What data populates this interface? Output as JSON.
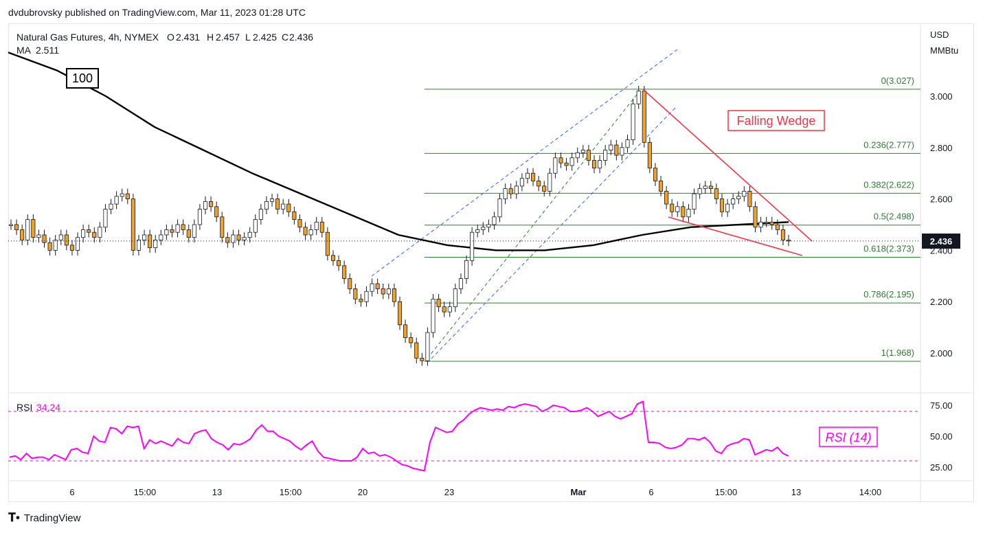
{
  "header": {
    "published": "dvdubrovsky published on TradingView.com, Mar 11, 2023 01:28 UTC"
  },
  "legend": {
    "symbol": "Natural Gas Futures, 4h, NYMEX",
    "open_label": "O",
    "open": "2.431",
    "high_label": "H",
    "high": "2.457",
    "low_label": "L",
    "low": "2.425",
    "close_label": "C",
    "close": "2.436",
    "ma_label": "MA",
    "ma_value": "2.511"
  },
  "price_axis": {
    "unit_line1": "USD",
    "unit_line2": "MMBtu",
    "ticks": [
      "3.000",
      "2.800",
      "2.600",
      "2.400",
      "2.200",
      "2.000"
    ],
    "last_price": "2.436"
  },
  "time_axis": {
    "ticks": [
      "6",
      "15:00",
      "13",
      "15:00",
      "20",
      "23",
      "Mar",
      "6",
      "15:00",
      "13",
      "14:00"
    ]
  },
  "ma_badge": "100",
  "annotations": {
    "pattern": "Falling Wedge",
    "rsi_title": "RSI (14)"
  },
  "fib_levels": [
    {
      "label": "0(3.027)",
      "value": 3.027
    },
    {
      "label": "0.236(2.777)",
      "value": 2.777
    },
    {
      "label": "0.382(2.622)",
      "value": 2.622
    },
    {
      "label": "0.5(2.498)",
      "value": 2.498
    },
    {
      "label": "0.618(2.373)",
      "value": 2.373
    },
    {
      "label": "0.786(2.195)",
      "value": 2.195
    },
    {
      "label": "1(1.968)",
      "value": 1.968
    }
  ],
  "rsi": {
    "label": "RSI",
    "value": "34.24",
    "ticks": [
      "75.00",
      "50.00",
      "25.00"
    ]
  },
  "footer": {
    "brand": "TradingView"
  },
  "colors": {
    "up": "#ffffff",
    "down": "#f0a12a",
    "wick": "#131722",
    "ma": "#000000",
    "fib": "#2e7d32",
    "wedge": "#f23645",
    "channel": "#2962ff",
    "rsi": "#ff00ff"
  },
  "chart_data": {
    "type": "line",
    "title": "Natural Gas Futures, 4h, NYMEX",
    "ylabel": "USD MMBtu",
    "ylim": [
      1.87,
      3.22
    ],
    "price_ohlc_close_approx": [
      2.5,
      2.48,
      2.44,
      2.52,
      2.45,
      2.46,
      2.43,
      2.4,
      2.44,
      2.46,
      2.42,
      2.4,
      2.45,
      2.48,
      2.47,
      2.45,
      2.49,
      2.56,
      2.58,
      2.61,
      2.62,
      2.6,
      2.4,
      2.44,
      2.46,
      2.41,
      2.44,
      2.46,
      2.48,
      2.47,
      2.5,
      2.48,
      2.45,
      2.5,
      2.56,
      2.59,
      2.57,
      2.53,
      2.45,
      2.43,
      2.46,
      2.44,
      2.45,
      2.47,
      2.52,
      2.56,
      2.59,
      2.6,
      2.56,
      2.58,
      2.55,
      2.52,
      2.49,
      2.46,
      2.48,
      2.51,
      2.47,
      2.38,
      2.36,
      2.34,
      2.29,
      2.25,
      2.21,
      2.2,
      2.24,
      2.27,
      2.25,
      2.23,
      2.25,
      2.2,
      2.11,
      2.06,
      2.04,
      1.98,
      1.97,
      2.08,
      2.21,
      2.18,
      2.16,
      2.18,
      2.25,
      2.29,
      2.36,
      2.47,
      2.48,
      2.49,
      2.5,
      2.53,
      2.6,
      2.64,
      2.62,
      2.65,
      2.68,
      2.7,
      2.67,
      2.65,
      2.63,
      2.7,
      2.76,
      2.74,
      2.73,
      2.76,
      2.78,
      2.79,
      2.75,
      2.72,
      2.75,
      2.79,
      2.81,
      2.77,
      2.8,
      2.83,
      2.97,
      3.02,
      2.82,
      2.72,
      2.67,
      2.63,
      2.58,
      2.55,
      2.57,
      2.53,
      2.56,
      2.62,
      2.64,
      2.65,
      2.64,
      2.6,
      2.55,
      2.58,
      2.6,
      2.61,
      2.63,
      2.57,
      2.49,
      2.51,
      2.51,
      2.5,
      2.48,
      2.44,
      2.436
    ],
    "ma100_approx": [
      3.17,
      3.1,
      3.0,
      2.88,
      2.79,
      2.7,
      2.62,
      2.54,
      2.46,
      2.42,
      2.4,
      2.4,
      2.42,
      2.46,
      2.49,
      2.5,
      2.51
    ],
    "rsi": {
      "ylim": [
        18,
        80
      ],
      "levels": [
        70,
        30
      ],
      "values": [
        33,
        34,
        31,
        36,
        32,
        33,
        33,
        31,
        35,
        33,
        31,
        39,
        40,
        37,
        36,
        50,
        46,
        45,
        57,
        56,
        52,
        58,
        57,
        58,
        40,
        47,
        44,
        46,
        44,
        42,
        48,
        45,
        44,
        52,
        54,
        55,
        48,
        45,
        43,
        39,
        44,
        43,
        45,
        48,
        55,
        59,
        54,
        54,
        50,
        48,
        46,
        42,
        39,
        43,
        46,
        38,
        33,
        32,
        31,
        30,
        30,
        30,
        33,
        40,
        36,
        37,
        34,
        35,
        33,
        30,
        27,
        26,
        24,
        23,
        22,
        45,
        57,
        55,
        53,
        54,
        60,
        63,
        68,
        71,
        73,
        72,
        71,
        72,
        71,
        74,
        73,
        75,
        76,
        75,
        74,
        70,
        72,
        75,
        74,
        73,
        70,
        70,
        71,
        73,
        70,
        66,
        68,
        70,
        66,
        64,
        66,
        68,
        76,
        78,
        45,
        45,
        44,
        41,
        40,
        41,
        43,
        48,
        48,
        47,
        49,
        45,
        38,
        36,
        42,
        44,
        45,
        48,
        47,
        35,
        37,
        39,
        38,
        41,
        36,
        34
      ]
    }
  }
}
